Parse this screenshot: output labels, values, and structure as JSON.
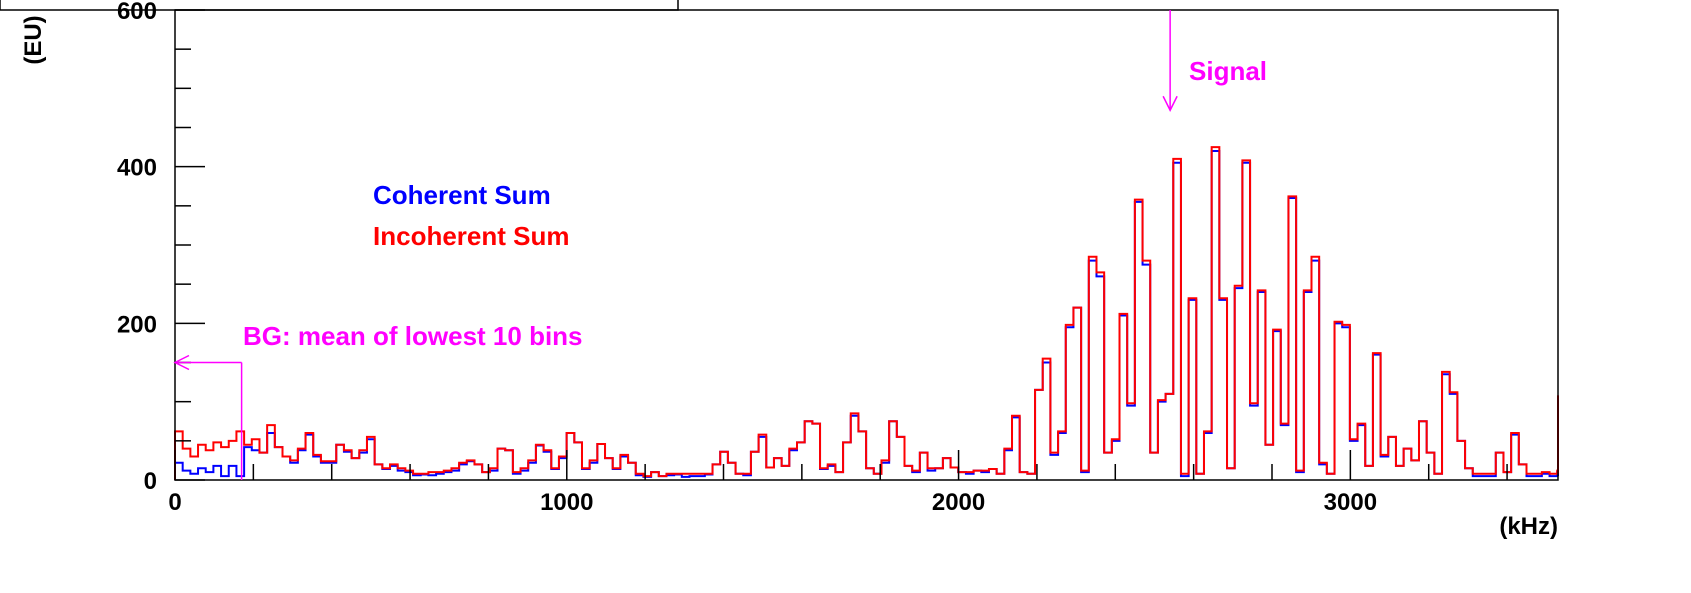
{
  "chart_data": {
    "type": "line",
    "title": "",
    "xlabel": "(kHz)",
    "ylabel": "(EU)",
    "xlim": [
      0,
      3530
    ],
    "ylim": [
      0,
      600
    ],
    "x_ticks": [
      0,
      1000,
      2000,
      3000
    ],
    "y_ticks": [
      0,
      200,
      400,
      600
    ],
    "bin_width": 19.6,
    "grid": false,
    "legend_placement": "upper-left",
    "series": [
      {
        "name": "Coherent Sum",
        "color": "#0000ff",
        "values": [
          22,
          12,
          8,
          15,
          10,
          18,
          5,
          18,
          5,
          42,
          38,
          35,
          60,
          42,
          30,
          22,
          38,
          58,
          30,
          22,
          22,
          45,
          36,
          28,
          35,
          52,
          20,
          14,
          18,
          12,
          10,
          6,
          7,
          6,
          8,
          10,
          12,
          20,
          24,
          20,
          10,
          12,
          40,
          38,
          8,
          12,
          22,
          44,
          36,
          14,
          28,
          60,
          48,
          14,
          22,
          46,
          28,
          14,
          30,
          22,
          6,
          4,
          10,
          5,
          6,
          7,
          4,
          5,
          5,
          7,
          20,
          36,
          22,
          8,
          6,
          36,
          55,
          16,
          28,
          18,
          38,
          48,
          75,
          72,
          14,
          18,
          10,
          48,
          82,
          62,
          15,
          8,
          22,
          75,
          55,
          18,
          10,
          35,
          12,
          15,
          28,
          16,
          10,
          8,
          12,
          10,
          14,
          8,
          38,
          80,
          10,
          8,
          115,
          150,
          32,
          60,
          195,
          220,
          10,
          280,
          260,
          35,
          50,
          210,
          95,
          355,
          275,
          35,
          100,
          110,
          405,
          5,
          230,
          8,
          60,
          420,
          230,
          15,
          245,
          405,
          95,
          240,
          45,
          190,
          70,
          360,
          10,
          240,
          280,
          20,
          8,
          200,
          195,
          50,
          70,
          18,
          160,
          30,
          55,
          18,
          40,
          25,
          75,
          35,
          8,
          135,
          110,
          50,
          15,
          5,
          5,
          5,
          35,
          10,
          58,
          20,
          5,
          5,
          8,
          5,
          10,
          8,
          18,
          10,
          60,
          35,
          18,
          95,
          15,
          5,
          50,
          20,
          75,
          5,
          105,
          5,
          15
        ]
      },
      {
        "name": "Incoherent Sum",
        "color": "#ff0000",
        "values": [
          62,
          40,
          30,
          45,
          38,
          48,
          42,
          50,
          62,
          45,
          52,
          35,
          70,
          42,
          30,
          25,
          40,
          60,
          32,
          24,
          24,
          45,
          38,
          28,
          38,
          55,
          20,
          15,
          20,
          15,
          12,
          8,
          8,
          10,
          10,
          12,
          15,
          22,
          25,
          20,
          10,
          15,
          40,
          38,
          10,
          15,
          25,
          45,
          38,
          15,
          30,
          60,
          48,
          15,
          25,
          46,
          28,
          15,
          32,
          22,
          8,
          5,
          10,
          5,
          8,
          8,
          8,
          8,
          8,
          8,
          20,
          36,
          22,
          8,
          8,
          36,
          58,
          16,
          28,
          18,
          40,
          48,
          75,
          72,
          15,
          20,
          10,
          48,
          85,
          62,
          15,
          8,
          25,
          75,
          55,
          18,
          12,
          35,
          15,
          15,
          28,
          16,
          10,
          10,
          12,
          12,
          14,
          8,
          40,
          82,
          10,
          8,
          115,
          155,
          35,
          62,
          198,
          220,
          12,
          285,
          265,
          35,
          52,
          212,
          98,
          358,
          280,
          35,
          102,
          110,
          410,
          8,
          232,
          8,
          62,
          425,
          232,
          15,
          248,
          408,
          98,
          242,
          45,
          192,
          72,
          362,
          12,
          242,
          285,
          22,
          8,
          202,
          198,
          52,
          72,
          18,
          162,
          32,
          55,
          18,
          40,
          25,
          75,
          35,
          8,
          138,
          112,
          50,
          15,
          8,
          8,
          8,
          35,
          10,
          60,
          20,
          8,
          8,
          10,
          8,
          12,
          10,
          20,
          10,
          62,
          38,
          20,
          98,
          15,
          8,
          52,
          20,
          78,
          8,
          108,
          8,
          15
        ]
      }
    ],
    "annotations": {
      "signal": {
        "text": "Signal",
        "x": 2540,
        "y_from": 600,
        "y_to": 472
      },
      "background": {
        "text": "BG: mean of lowest 10 bins",
        "x_from": 0,
        "x_to": 170,
        "y": 150
      }
    }
  }
}
